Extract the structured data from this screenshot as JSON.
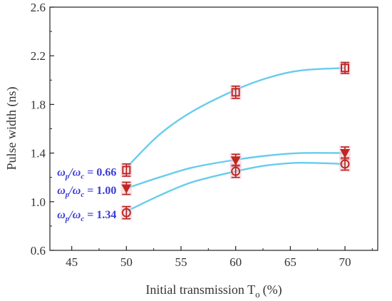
{
  "chart_data": {
    "type": "scatter",
    "xlabel": "Initial transmission T",
    "xlabel_subscript": "o",
    "xlabel_unit": "(%)",
    "ylabel": "Pulse width  (ns)",
    "xlim": [
      43,
      73
    ],
    "ylim": [
      0.6,
      2.6
    ],
    "xticks": [
      45,
      50,
      55,
      60,
      65,
      70
    ],
    "yticks": [
      0.6,
      1.0,
      1.4,
      1.8,
      2.2,
      2.6
    ],
    "ytick_labels": [
      "0.6",
      "1.0",
      "1.4",
      "1.8",
      "2.2",
      "2.6"
    ],
    "grid": false,
    "fit_line_color": "#66ccee",
    "marker_color": "#c0281e",
    "errorbar_color": "#b02020",
    "label_color": "#3b3bd6",
    "series": [
      {
        "name_symbol": "ω",
        "name_sub_num": "p",
        "name_sub_den": "c",
        "name_value": " = 0.66",
        "marker": "square",
        "x": [
          50,
          60,
          70
        ],
        "y": [
          1.26,
          1.9,
          2.1
        ],
        "err": [
          0.05,
          0.05,
          0.045
        ],
        "fit": [
          [
            50,
            1.28
          ],
          [
            53,
            1.55
          ],
          [
            56,
            1.74
          ],
          [
            60,
            1.92
          ],
          [
            63,
            2.02
          ],
          [
            66,
            2.08
          ],
          [
            70,
            2.1
          ]
        ]
      },
      {
        "name_symbol": "ω",
        "name_sub_num": "p",
        "name_sub_den": "c",
        "name_value": " = 1.00",
        "marker": "triangle-down",
        "x": [
          50,
          60,
          70
        ],
        "y": [
          1.11,
          1.34,
          1.4
        ],
        "err": [
          0.05,
          0.05,
          0.05
        ],
        "fit": [
          [
            50,
            1.11
          ],
          [
            53,
            1.2
          ],
          [
            56,
            1.28
          ],
          [
            60,
            1.345
          ],
          [
            63,
            1.38
          ],
          [
            66,
            1.4
          ],
          [
            70,
            1.4
          ]
        ]
      },
      {
        "name_symbol": "ω",
        "name_sub_num": "p",
        "name_sub_den": "c",
        "name_value": " = 1.34",
        "marker": "circle",
        "x": [
          50,
          60,
          70
        ],
        "y": [
          0.91,
          1.25,
          1.31
        ],
        "err": [
          0.05,
          0.05,
          0.05
        ],
        "fit": [
          [
            50,
            0.92
          ],
          [
            53,
            1.05
          ],
          [
            56,
            1.16
          ],
          [
            60,
            1.25
          ],
          [
            63,
            1.3
          ],
          [
            66,
            1.32
          ],
          [
            70,
            1.31
          ]
        ]
      }
    ]
  }
}
